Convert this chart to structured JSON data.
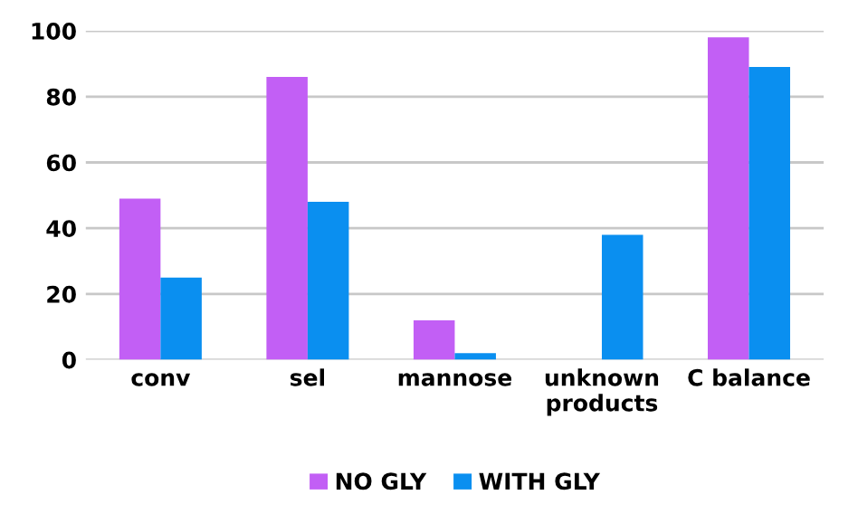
{
  "chart_data": {
    "type": "bar",
    "categories": [
      "conv",
      "sel",
      "mannose",
      "unknown\nproducts",
      "C balance"
    ],
    "series": [
      {
        "name": "NO GLY",
        "color": "#c25ff5",
        "values": [
          49,
          86,
          12,
          0,
          98
        ]
      },
      {
        "name": "WITH GLY",
        "color": "#0a8ff0",
        "values": [
          25,
          48,
          2,
          38,
          89
        ]
      }
    ],
    "ylim": [
      0,
      100
    ],
    "yticks": [
      0,
      20,
      40,
      60,
      80,
      100
    ],
    "grid": "y",
    "legend": "bottom"
  }
}
